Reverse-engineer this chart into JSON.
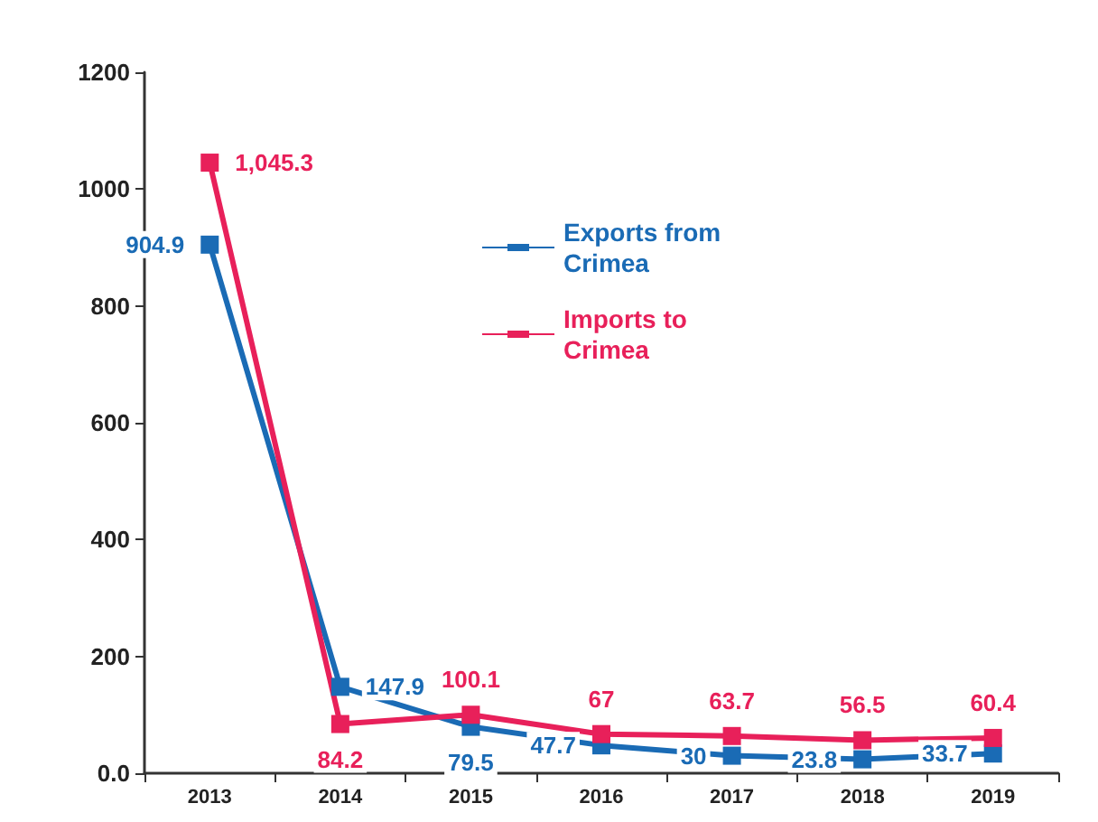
{
  "chart_data": {
    "type": "line",
    "categories": [
      "2013",
      "2014",
      "2015",
      "2016",
      "2017",
      "2018",
      "2019"
    ],
    "series": [
      {
        "name": "Exports from Crimea",
        "color": "#1a6bb5",
        "values": [
          904.9,
          147.9,
          79.5,
          47.7,
          30,
          23.8,
          33.7
        ],
        "value_labels": [
          "904.9",
          "147.9",
          "79.5",
          "47.7",
          "30",
          "23.8",
          "33.7"
        ]
      },
      {
        "name": "Imports to Crimea",
        "color": "#e8205a",
        "values": [
          1045.3,
          84.2,
          100.1,
          67,
          63.7,
          56.5,
          60.4
        ],
        "value_labels": [
          "1,045.3",
          "84.2",
          "100.1",
          "67",
          "63.7",
          "56.5",
          "60.4"
        ]
      }
    ],
    "ylim": [
      0,
      1200
    ],
    "yticks": [
      {
        "value": 0,
        "label": "0.0"
      },
      200,
      400,
      600,
      800,
      1000,
      1200
    ],
    "grid": false,
    "legend": "top right",
    "marker": "square",
    "line_style": "solid"
  }
}
